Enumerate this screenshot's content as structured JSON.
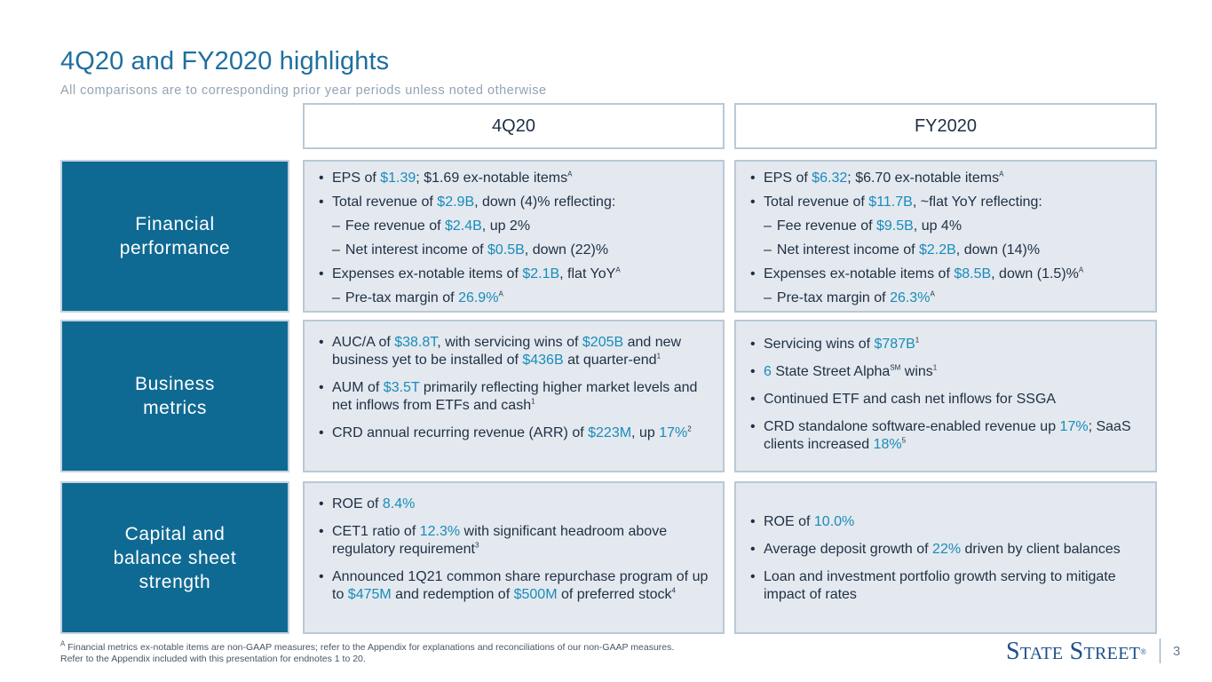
{
  "header": {
    "title": "4Q20 and FY2020 highlights",
    "subtitle": "All comparisons are to corresponding prior year periods unless noted otherwise"
  },
  "columns": {
    "q": "4Q20",
    "fy": "FY2020"
  },
  "rows": {
    "financial": {
      "label": "Financial performance",
      "q": [
        {
          "type": "b",
          "parts": [
            [
              "EPS of ",
              0
            ],
            [
              "$1.39",
              1
            ],
            [
              "; $1.69 ex-notable items",
              0
            ],
            [
              "A",
              2
            ]
          ]
        },
        {
          "type": "b",
          "parts": [
            [
              "Total revenue of ",
              0
            ],
            [
              "$2.9B",
              1
            ],
            [
              ", down (4)% reflecting:",
              0
            ]
          ]
        },
        {
          "type": "d",
          "parts": [
            [
              "Fee revenue of ",
              0
            ],
            [
              "$2.4B",
              1
            ],
            [
              ", up 2%",
              0
            ]
          ]
        },
        {
          "type": "d",
          "parts": [
            [
              "Net interest income of ",
              0
            ],
            [
              "$0.5B",
              1
            ],
            [
              ", down (22)%",
              0
            ]
          ]
        },
        {
          "type": "b",
          "parts": [
            [
              "Expenses ex-notable items of ",
              0
            ],
            [
              "$2.1B",
              1
            ],
            [
              ", flat YoY",
              0
            ],
            [
              "A",
              2
            ]
          ]
        },
        {
          "type": "d",
          "parts": [
            [
              "Pre-tax margin of ",
              0
            ],
            [
              "26.9%",
              1
            ],
            [
              "A",
              2
            ]
          ]
        }
      ],
      "fy": [
        {
          "type": "b",
          "parts": [
            [
              "EPS of ",
              0
            ],
            [
              "$6.32",
              1
            ],
            [
              "; $6.70 ex-notable items",
              0
            ],
            [
              "A",
              2
            ]
          ]
        },
        {
          "type": "b",
          "parts": [
            [
              "Total revenue of ",
              0
            ],
            [
              "$11.7B",
              1
            ],
            [
              ", ~flat YoY reflecting:",
              0
            ]
          ]
        },
        {
          "type": "d",
          "parts": [
            [
              "Fee revenue of ",
              0
            ],
            [
              "$9.5B",
              1
            ],
            [
              ", up 4%",
              0
            ]
          ]
        },
        {
          "type": "d",
          "parts": [
            [
              "Net interest income of ",
              0
            ],
            [
              "$2.2B",
              1
            ],
            [
              ", down (14)%",
              0
            ]
          ]
        },
        {
          "type": "b",
          "parts": [
            [
              "Expenses ex-notable items of ",
              0
            ],
            [
              "$8.5B",
              1
            ],
            [
              ", down (1.5)%",
              0
            ],
            [
              "A",
              2
            ]
          ]
        },
        {
          "type": "d",
          "parts": [
            [
              "Pre-tax margin of ",
              0
            ],
            [
              "26.3%",
              1
            ],
            [
              "A",
              2
            ]
          ]
        }
      ]
    },
    "business": {
      "label": "Business metrics",
      "q": [
        {
          "type": "b",
          "parts": [
            [
              "AUC/A of ",
              0
            ],
            [
              "$38.8T",
              1
            ],
            [
              ", with servicing wins of ",
              0
            ],
            [
              "$205B",
              1
            ],
            [
              " and new business yet to be installed of ",
              0
            ],
            [
              "$436B",
              1
            ],
            [
              " at quarter-end",
              0
            ],
            [
              "1",
              2
            ]
          ]
        },
        {
          "type": "b",
          "parts": [
            [
              "AUM of ",
              0
            ],
            [
              "$3.5T",
              1
            ],
            [
              " primarily reflecting higher market levels and net inflows from ETFs and cash",
              0
            ],
            [
              "1",
              2
            ]
          ]
        },
        {
          "type": "b",
          "parts": [
            [
              "CRD annual recurring revenue (ARR) of ",
              0
            ],
            [
              "$223M",
              1
            ],
            [
              ", up ",
              0
            ],
            [
              "17%",
              1
            ],
            [
              "2",
              2
            ]
          ]
        }
      ],
      "fy": [
        {
          "type": "b",
          "parts": [
            [
              "Servicing wins of ",
              0
            ],
            [
              "$787B",
              1
            ],
            [
              "1",
              2
            ]
          ]
        },
        {
          "type": "b",
          "parts": [
            [
              "6",
              1
            ],
            [
              " State Street Alpha",
              0
            ],
            [
              "SM",
              2
            ],
            [
              " wins",
              0
            ],
            [
              "1",
              2
            ]
          ]
        },
        {
          "type": "b",
          "parts": [
            [
              "Continued ETF and cash net inflows for SSGA",
              0
            ]
          ]
        },
        {
          "type": "b",
          "parts": [
            [
              "CRD standalone software-enabled revenue up ",
              0
            ],
            [
              "17%",
              1
            ],
            [
              "; SaaS clients increased ",
              0
            ],
            [
              "18%",
              1
            ],
            [
              "5",
              2
            ]
          ]
        }
      ]
    },
    "capital": {
      "label": "Capital and balance sheet strength",
      "q": [
        {
          "type": "b",
          "parts": [
            [
              "ROE of ",
              0
            ],
            [
              "8.4%",
              1
            ]
          ]
        },
        {
          "type": "b",
          "parts": [
            [
              "CET1 ratio of ",
              0
            ],
            [
              "12.3%",
              1
            ],
            [
              " with significant headroom above regulatory requirement",
              0
            ],
            [
              "3",
              2
            ]
          ]
        },
        {
          "type": "b",
          "parts": [
            [
              "Announced 1Q21 common share repurchase program of up to ",
              0
            ],
            [
              "$475M",
              1
            ],
            [
              " and redemption of ",
              0
            ],
            [
              "$500M",
              1
            ],
            [
              " of preferred stock",
              0
            ],
            [
              "4",
              2
            ]
          ]
        }
      ],
      "fy": [
        {
          "type": "b",
          "parts": [
            [
              "ROE of ",
              0
            ],
            [
              "10.0%",
              1
            ]
          ]
        },
        {
          "type": "b",
          "parts": [
            [
              "Average deposit growth of ",
              0
            ],
            [
              "22%",
              1
            ],
            [
              " driven by client balances",
              0
            ]
          ]
        },
        {
          "type": "b",
          "parts": [
            [
              "Loan and investment portfolio growth serving to mitigate impact of rates",
              0
            ]
          ]
        }
      ]
    }
  },
  "footnote": {
    "marker": "A",
    "line1": " Financial metrics ex-notable items are non-GAAP measures; refer to the Appendix for explanations and reconciliations of our non-GAAP measures.",
    "line2": "Refer to the Appendix included with this presentation for endnotes 1 to 20."
  },
  "logo": {
    "text": "State Street",
    "mark": "®"
  },
  "page_number": "3",
  "colors": {
    "title": "#1f6f9f",
    "label_bg": "#0f6a93",
    "highlight": "#1a8bbd",
    "cell_bg": "#e3e9ee"
  }
}
